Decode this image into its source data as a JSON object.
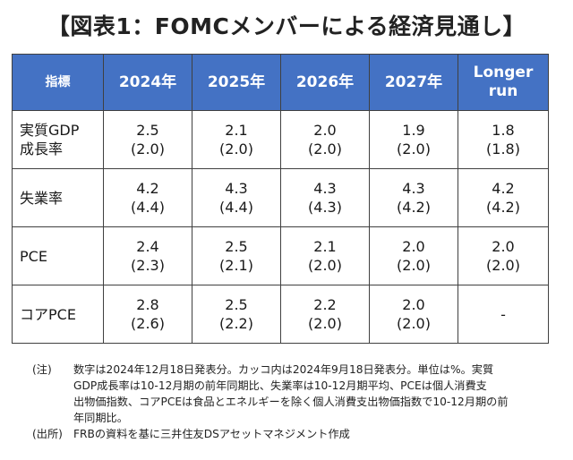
{
  "title": "【図表1：FOMCメンバーによる経済見通し】",
  "table": {
    "headers": [
      "指標",
      "2024年",
      "2025年",
      "2026年",
      "2027年",
      "Longer run"
    ],
    "longer_run_lines": [
      "Longer",
      "run"
    ],
    "rows": [
      {
        "label_lines": [
          "実質GDP",
          "成長率"
        ],
        "cells": [
          {
            "value": "2.5",
            "prev": "(2.0)"
          },
          {
            "value": "2.1",
            "prev": "(2.0)"
          },
          {
            "value": "2.0",
            "prev": "(2.0)"
          },
          {
            "value": "1.9",
            "prev": "(2.0)"
          },
          {
            "value": "1.8",
            "prev": "(1.8)"
          }
        ]
      },
      {
        "label_lines": [
          "失業率",
          ""
        ],
        "cells": [
          {
            "value": "4.2",
            "prev": "(4.4)"
          },
          {
            "value": "4.3",
            "prev": "(4.4)"
          },
          {
            "value": "4.3",
            "prev": "(4.3)"
          },
          {
            "value": "4.3",
            "prev": "(4.2)"
          },
          {
            "value": "4.2",
            "prev": "(4.2)"
          }
        ]
      },
      {
        "label_lines": [
          "PCE",
          ""
        ],
        "cells": [
          {
            "value": "2.4",
            "prev": "(2.3)"
          },
          {
            "value": "2.5",
            "prev": "(2.1)"
          },
          {
            "value": "2.1",
            "prev": "(2.0)"
          },
          {
            "value": "2.0",
            "prev": "(2.0)"
          },
          {
            "value": "2.0",
            "prev": "(2.0)"
          }
        ]
      },
      {
        "label_lines": [
          "コアPCE",
          ""
        ],
        "cells": [
          {
            "value": "2.8",
            "prev": "(2.6)"
          },
          {
            "value": "2.5",
            "prev": "(2.2)"
          },
          {
            "value": "2.2",
            "prev": "(2.0)"
          },
          {
            "value": "2.0",
            "prev": "(2.0)"
          },
          {
            "value": "-",
            "prev": ""
          }
        ]
      }
    ]
  },
  "notes": {
    "note_head": "(注)",
    "note_lines": [
      "数字は2024年12月18日発表分。カッコ内は2024年9月18日発表分。単位は%。実質",
      "GDP成長率は10-12月期の前年同期比、失業率は10-12月期平均、PCEは個人消費支",
      "出物価指数、コアPCEは食品とエネルギーを除く個人消費支出物価指数で10-12月期の前",
      "年同期比。"
    ],
    "source_head": "(出所)",
    "source_text": "FRBの資料を基に三井住友DSアセットマネジメント作成"
  }
}
